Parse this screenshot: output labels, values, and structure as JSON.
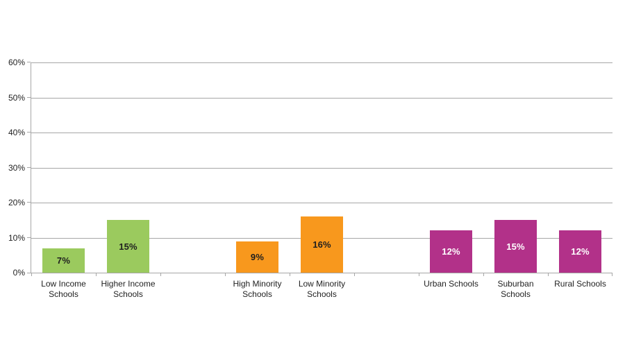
{
  "chart_data": {
    "type": "bar",
    "title": "",
    "xlabel": "",
    "ylabel": "",
    "ylim": [
      0,
      60
    ],
    "ytick_step": 10,
    "ytick_labels": [
      "0%",
      "10%",
      "20%",
      "30%",
      "40%",
      "50%",
      "60%"
    ],
    "grid": true,
    "legend_position": "none",
    "n_category_slots": 9,
    "bars": [
      {
        "slot": 0,
        "category": "Low Income Schools",
        "value": 7,
        "data_label": "7%",
        "color": "#9BCA5E",
        "data_label_color": "#1F1F1F",
        "group": "income"
      },
      {
        "slot": 1,
        "category": "Higher Income Schools",
        "value": 15,
        "data_label": "15%",
        "color": "#9BCA5E",
        "data_label_color": "#1F1F1F",
        "group": "income"
      },
      {
        "slot": 3,
        "category": "High Minority Schools",
        "value": 9,
        "data_label": "9%",
        "color": "#F8981D",
        "data_label_color": "#1F1F1F",
        "group": "minority"
      },
      {
        "slot": 4,
        "category": "Low Minority Schools",
        "value": 16,
        "data_label": "16%",
        "color": "#F8981D",
        "data_label_color": "#1F1F1F",
        "group": "minority"
      },
      {
        "slot": 6,
        "category": "Urban Schools",
        "value": 12,
        "data_label": "12%",
        "color": "#B23189",
        "data_label_color": "#FFFFFF",
        "group": "locale"
      },
      {
        "slot": 7,
        "category": "Suburban Schools",
        "value": 15,
        "data_label": "15%",
        "color": "#B23189",
        "data_label_color": "#FFFFFF",
        "group": "locale"
      },
      {
        "slot": 8,
        "category": "Rural Schools",
        "value": 12,
        "data_label": "12%",
        "color": "#B23189",
        "data_label_color": "#FFFFFF",
        "group": "locale"
      }
    ],
    "colors": {
      "gridline": "#A6A6A6",
      "axis": "#A6A6A6",
      "text": "#1F1F1F",
      "background": "#FFFFFF",
      "green_series": "#9BCA5E",
      "orange_series": "#F8981D",
      "magenta_series": "#B23189"
    }
  }
}
